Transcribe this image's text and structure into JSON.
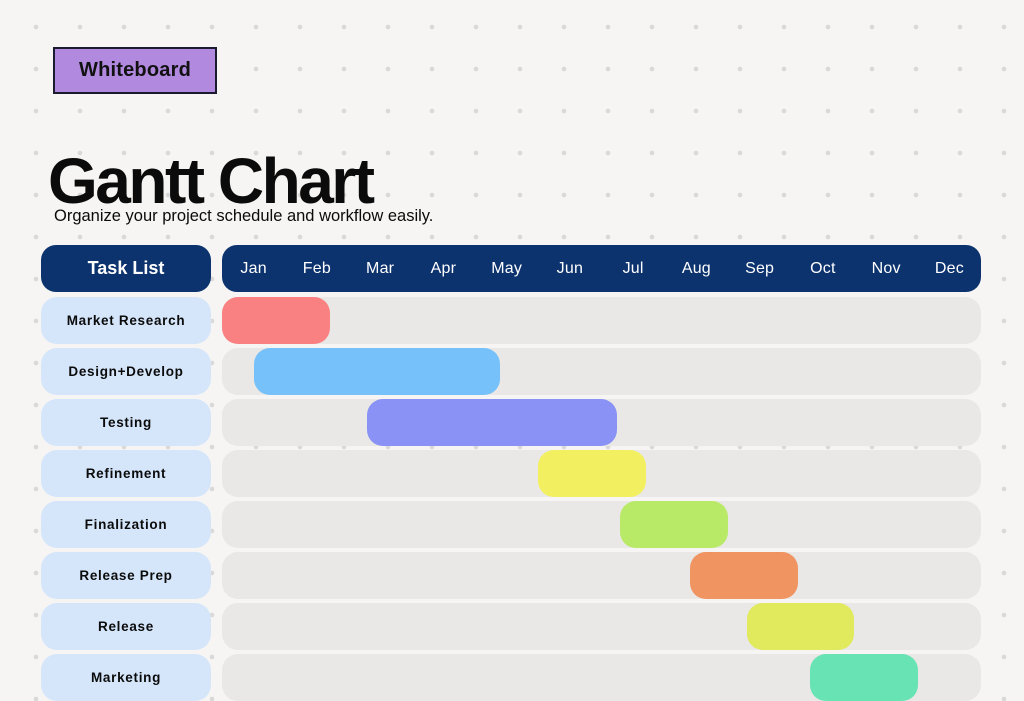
{
  "badge": {
    "label": "Whiteboard"
  },
  "header": {
    "title": "Gantt Chart",
    "subtitle": "Organize your project schedule and workflow easily."
  },
  "table": {
    "task_header": "Task List",
    "months": [
      "Jan",
      "Feb",
      "Mar",
      "Apr",
      "May",
      "Jun",
      "Jul",
      "Aug",
      "Sep",
      "Oct",
      "Nov",
      "Dec"
    ]
  },
  "colors": {
    "background": "#f6f5f3",
    "dot_grid": "#d9d9d9",
    "header_navy": "#0d336e",
    "task_pill_blue": "#d5e6fb",
    "track_gray": "#e9e8e6",
    "badge_purple": "#b18ae0",
    "badge_border": "#1b1b2f"
  },
  "chart_data": {
    "type": "gantt",
    "title": "Gantt Chart",
    "x_axis": [
      "Jan",
      "Feb",
      "Mar",
      "Apr",
      "May",
      "Jun",
      "Jul",
      "Aug",
      "Sep",
      "Oct",
      "Nov",
      "Dec"
    ],
    "x_range_months": [
      0,
      12
    ],
    "tasks": [
      {
        "name": "Market Research",
        "start_month": 0.0,
        "end_month": 1.7,
        "color": "#fa8181"
      },
      {
        "name": "Design+Develop",
        "start_month": 0.5,
        "end_month": 4.4,
        "color": "#77c1fa"
      },
      {
        "name": "Testing",
        "start_month": 2.3,
        "end_month": 6.25,
        "color": "#8a93f5"
      },
      {
        "name": "Refinement",
        "start_month": 5.0,
        "end_month": 6.7,
        "color": "#f2f061"
      },
      {
        "name": "Finalization",
        "start_month": 6.3,
        "end_month": 8.0,
        "color": "#b9ea67"
      },
      {
        "name": "Release Prep",
        "start_month": 7.4,
        "end_month": 9.1,
        "color": "#f09462"
      },
      {
        "name": "Release",
        "start_month": 8.3,
        "end_month": 10.0,
        "color": "#e0ea5c"
      },
      {
        "name": "Marketing",
        "start_month": 9.3,
        "end_month": 11.0,
        "color": "#68e3b4"
      }
    ]
  }
}
